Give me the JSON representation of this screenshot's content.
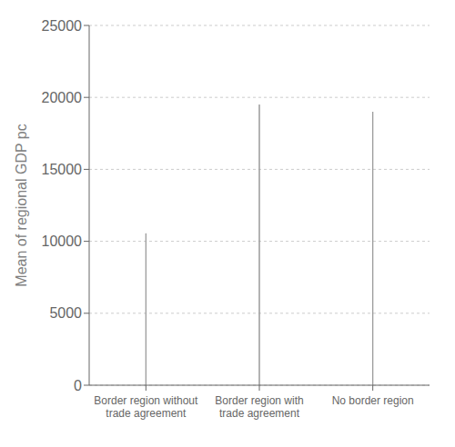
{
  "chart_data": {
    "type": "bar",
    "categories": [
      "Border region without\ntrade agreement",
      "Border region with\ntrade agreement",
      "No border region"
    ],
    "values": [
      10550,
      19500,
      19000
    ],
    "colors": [
      "#737373",
      "#d8d8d8",
      "#ffffff"
    ],
    "ylabel": "Mean of regional GDP pc",
    "ylim": [
      0,
      25000
    ],
    "yticks": [
      0,
      5000,
      10000,
      15000,
      20000,
      25000
    ],
    "grid": true
  }
}
